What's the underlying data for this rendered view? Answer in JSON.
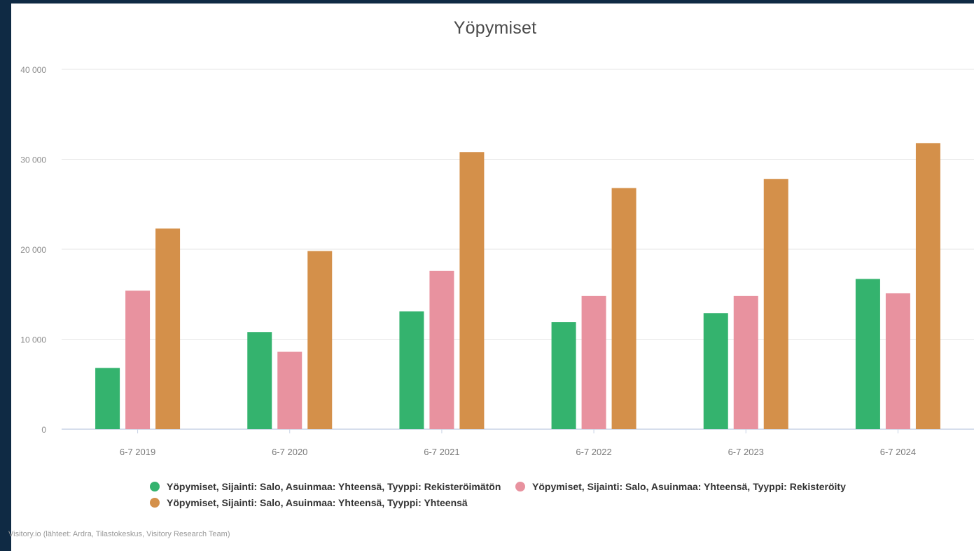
{
  "chart_data": {
    "type": "bar",
    "title": "Yöpymiset",
    "categories": [
      "6-7 2019",
      "6-7 2020",
      "6-7 2021",
      "6-7 2022",
      "6-7 2023",
      "6-7 2024"
    ],
    "series": [
      {
        "name": "Yöpymiset, Sijainti: Salo, Asuinmaa: Yhteensä, Tyyppi: Rekisteröimätön",
        "color": "#34b36e",
        "values": [
          6800,
          10800,
          13100,
          11900,
          12900,
          16700
        ]
      },
      {
        "name": "Yöpymiset, Sijainti: Salo, Asuinmaa: Yhteensä, Tyyppi: Rekisteröity",
        "color": "#e8929f",
        "values": [
          15400,
          8600,
          17600,
          14800,
          14800,
          15100
        ]
      },
      {
        "name": "Yöpymiset, Sijainti: Salo, Asuinmaa: Yhteensä, Tyyppi: Yhteensä",
        "color": "#d4904a",
        "values": [
          22300,
          19800,
          30800,
          26800,
          27800,
          31800
        ]
      }
    ],
    "ylim": [
      0,
      40000
    ],
    "yticks": [
      "0",
      "10 000",
      "20 000",
      "30 000",
      "40 000"
    ],
    "grid": true,
    "legend_position": "bottom",
    "source": "Visitory.io (lähteet: Ardra, Tilastokeskus, Visitory Research Team)"
  }
}
